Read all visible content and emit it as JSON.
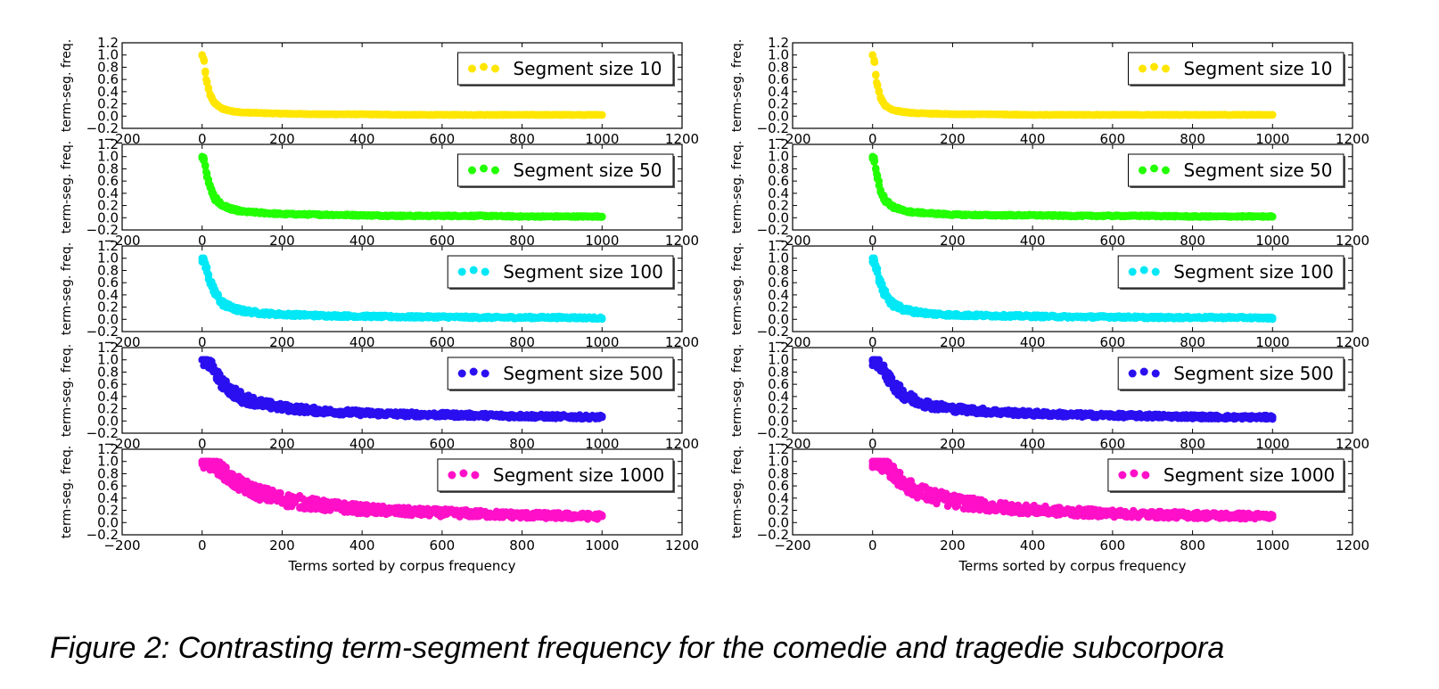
{
  "caption": "Figure 2: Contrasting term-segment frequency for the comedie and tragedie subcorpora",
  "chart_data": [
    {
      "type": "scatter",
      "subcorpus": "comedie",
      "xlabel": "Terms sorted by corpus frequency",
      "ylabel": "term-seg. freq.",
      "xlim": [
        -200,
        1200
      ],
      "ylim": [
        -0.2,
        1.2
      ],
      "xticks": [
        "−200",
        "0",
        "200",
        "400",
        "600",
        "800",
        "1000",
        "1200"
      ],
      "yticks": [
        "−0.2",
        "0.0",
        "0.2",
        "0.4",
        "0.6",
        "0.8",
        "1.0",
        "1.2"
      ],
      "grid": false,
      "legend_position": "upper right",
      "series": [
        {
          "name": "Segment size 10",
          "color": "#ffe600",
          "x": [
            0,
            5,
            10,
            20,
            30,
            50,
            75,
            100,
            150,
            200,
            300,
            400,
            500,
            600,
            700,
            800,
            900,
            1000
          ],
          "y": [
            1.0,
            0.9,
            0.6,
            0.35,
            0.22,
            0.12,
            0.08,
            0.06,
            0.05,
            0.04,
            0.03,
            0.03,
            0.02,
            0.02,
            0.02,
            0.02,
            0.02,
            0.02
          ]
        },
        {
          "name": "Segment size 50",
          "color": "#22ff00",
          "x": [
            0,
            5,
            10,
            20,
            30,
            50,
            75,
            100,
            150,
            200,
            300,
            400,
            500,
            600,
            700,
            800,
            900,
            1000
          ],
          "y": [
            1.0,
            0.95,
            0.75,
            0.5,
            0.33,
            0.2,
            0.14,
            0.1,
            0.08,
            0.06,
            0.05,
            0.04,
            0.03,
            0.03,
            0.03,
            0.02,
            0.02,
            0.02
          ]
        },
        {
          "name": "Segment size 100",
          "color": "#00e8f5",
          "x": [
            0,
            5,
            10,
            20,
            30,
            50,
            75,
            100,
            150,
            200,
            300,
            400,
            500,
            600,
            700,
            800,
            900,
            1000
          ],
          "y": [
            1.0,
            0.97,
            0.85,
            0.62,
            0.45,
            0.27,
            0.18,
            0.14,
            0.1,
            0.08,
            0.06,
            0.05,
            0.04,
            0.04,
            0.03,
            0.03,
            0.03,
            0.02
          ]
        },
        {
          "name": "Segment size 500",
          "color": "#2a0ff0",
          "x": [
            0,
            5,
            10,
            20,
            30,
            50,
            75,
            100,
            150,
            200,
            300,
            400,
            500,
            600,
            700,
            800,
            900,
            1000
          ],
          "y": [
            1.0,
            1.0,
            0.98,
            0.92,
            0.82,
            0.62,
            0.48,
            0.38,
            0.28,
            0.22,
            0.16,
            0.13,
            0.11,
            0.1,
            0.09,
            0.08,
            0.07,
            0.06
          ]
        },
        {
          "name": "Segment size 1000",
          "color": "#ff10c8",
          "x": [
            0,
            5,
            10,
            20,
            30,
            50,
            75,
            100,
            150,
            200,
            300,
            400,
            500,
            600,
            700,
            800,
            900,
            1000
          ],
          "y": [
            1.0,
            1.0,
            1.0,
            0.98,
            0.95,
            0.85,
            0.7,
            0.6,
            0.47,
            0.38,
            0.28,
            0.22,
            0.18,
            0.16,
            0.14,
            0.12,
            0.11,
            0.1
          ]
        }
      ]
    },
    {
      "type": "scatter",
      "subcorpus": "tragedie",
      "xlabel": "Terms sorted by corpus frequency",
      "ylabel": "term-seg. freq.",
      "xlim": [
        -200,
        1200
      ],
      "ylim": [
        -0.2,
        1.2
      ],
      "xticks": [
        "−200",
        "0",
        "200",
        "400",
        "600",
        "800",
        "1000",
        "1200"
      ],
      "yticks": [
        "−0.2",
        "0.0",
        "0.2",
        "0.4",
        "0.6",
        "0.8",
        "1.0",
        "1.2"
      ],
      "grid": false,
      "legend_position": "upper right",
      "series": [
        {
          "name": "Segment size 10",
          "color": "#ffe600",
          "x": [
            0,
            5,
            10,
            20,
            30,
            50,
            75,
            100,
            150,
            200,
            300,
            400,
            500,
            600,
            700,
            800,
            900,
            1000
          ],
          "y": [
            1.0,
            0.88,
            0.55,
            0.3,
            0.18,
            0.1,
            0.07,
            0.05,
            0.04,
            0.03,
            0.03,
            0.02,
            0.02,
            0.02,
            0.02,
            0.02,
            0.02,
            0.02
          ]
        },
        {
          "name": "Segment size 50",
          "color": "#22ff00",
          "x": [
            0,
            5,
            10,
            20,
            30,
            50,
            75,
            100,
            150,
            200,
            300,
            400,
            500,
            600,
            700,
            800,
            900,
            1000
          ],
          "y": [
            1.0,
            0.93,
            0.72,
            0.45,
            0.3,
            0.18,
            0.12,
            0.09,
            0.07,
            0.05,
            0.04,
            0.04,
            0.03,
            0.03,
            0.03,
            0.02,
            0.02,
            0.02
          ]
        },
        {
          "name": "Segment size 100",
          "color": "#00e8f5",
          "x": [
            0,
            5,
            10,
            20,
            30,
            50,
            75,
            100,
            150,
            200,
            300,
            400,
            500,
            600,
            700,
            800,
            900,
            1000
          ],
          "y": [
            1.0,
            0.96,
            0.82,
            0.58,
            0.42,
            0.25,
            0.17,
            0.13,
            0.09,
            0.07,
            0.06,
            0.05,
            0.04,
            0.04,
            0.03,
            0.03,
            0.03,
            0.02
          ]
        },
        {
          "name": "Segment size 500",
          "color": "#2a0ff0",
          "x": [
            0,
            5,
            10,
            20,
            30,
            50,
            75,
            100,
            150,
            200,
            300,
            400,
            500,
            600,
            700,
            800,
            900,
            1000
          ],
          "y": [
            1.0,
            1.0,
            0.97,
            0.9,
            0.8,
            0.6,
            0.45,
            0.35,
            0.25,
            0.2,
            0.15,
            0.12,
            0.1,
            0.09,
            0.08,
            0.07,
            0.06,
            0.06
          ]
        },
        {
          "name": "Segment size 1000",
          "color": "#ff10c8",
          "x": [
            0,
            5,
            10,
            20,
            30,
            50,
            75,
            100,
            150,
            200,
            300,
            400,
            500,
            600,
            700,
            800,
            900,
            1000
          ],
          "y": [
            1.0,
            1.0,
            0.99,
            0.97,
            0.93,
            0.82,
            0.66,
            0.55,
            0.43,
            0.35,
            0.26,
            0.21,
            0.17,
            0.15,
            0.13,
            0.12,
            0.11,
            0.1
          ]
        }
      ]
    }
  ]
}
